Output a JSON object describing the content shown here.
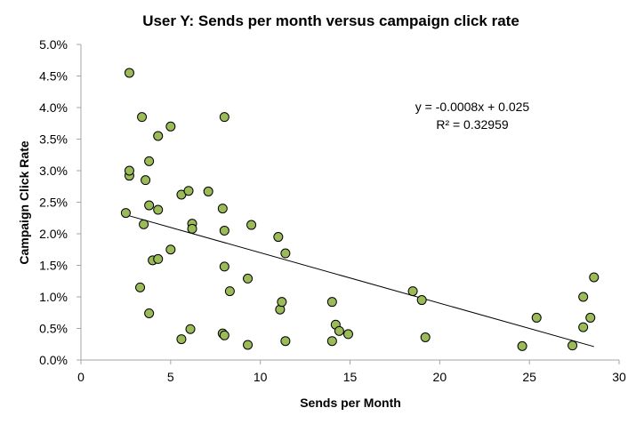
{
  "chart_data": {
    "type": "scatter",
    "title": "User Y: Sends per month versus campaign click rate",
    "xlabel": "Sends per Month",
    "ylabel": "Campaign Click Rate",
    "xlim": [
      0,
      30
    ],
    "ylim": [
      0,
      0.05
    ],
    "x_ticks": [
      "0",
      "5",
      "10",
      "15",
      "20",
      "25",
      "30"
    ],
    "y_ticks": [
      "0.0%",
      "0.5%",
      "1.0%",
      "1.5%",
      "2.0%",
      "2.5%",
      "3.0%",
      "3.5%",
      "4.0%",
      "4.5%",
      "5.0%"
    ],
    "grid": false,
    "legend": "none",
    "marker_color": "#9bbb59",
    "points": [
      [
        2.5,
        0.0233
      ],
      [
        2.7,
        0.0455
      ],
      [
        2.7,
        0.0292
      ],
      [
        2.7,
        0.03
      ],
      [
        3.3,
        0.0115
      ],
      [
        3.4,
        0.0385
      ],
      [
        3.5,
        0.0215
      ],
      [
        3.6,
        0.0285
      ],
      [
        3.8,
        0.0074
      ],
      [
        3.8,
        0.0315
      ],
      [
        3.8,
        0.0245
      ],
      [
        4.0,
        0.0158
      ],
      [
        4.3,
        0.016
      ],
      [
        4.3,
        0.0355
      ],
      [
        4.3,
        0.0238
      ],
      [
        5.0,
        0.037
      ],
      [
        5.0,
        0.0175
      ],
      [
        5.6,
        0.0033
      ],
      [
        5.6,
        0.0262
      ],
      [
        6.0,
        0.0268
      ],
      [
        6.1,
        0.0049
      ],
      [
        6.2,
        0.0216
      ],
      [
        6.2,
        0.0208
      ],
      [
        7.1,
        0.0267
      ],
      [
        7.9,
        0.0042
      ],
      [
        7.9,
        0.024
      ],
      [
        8.0,
        0.0039
      ],
      [
        8.0,
        0.0385
      ],
      [
        8.0,
        0.0205
      ],
      [
        8.0,
        0.0148
      ],
      [
        8.3,
        0.0109
      ],
      [
        9.3,
        0.0129
      ],
      [
        9.3,
        0.0024
      ],
      [
        9.5,
        0.0214
      ],
      [
        11.0,
        0.0195
      ],
      [
        11.1,
        0.008
      ],
      [
        11.2,
        0.0092
      ],
      [
        11.4,
        0.0169
      ],
      [
        11.4,
        0.003
      ],
      [
        14.0,
        0.0092
      ],
      [
        14.0,
        0.003
      ],
      [
        14.2,
        0.0056
      ],
      [
        14.4,
        0.0046
      ],
      [
        14.9,
        0.0041
      ],
      [
        18.5,
        0.0109
      ],
      [
        19.0,
        0.0095
      ],
      [
        19.2,
        0.0036
      ],
      [
        24.6,
        0.0022
      ],
      [
        25.4,
        0.0067
      ],
      [
        27.4,
        0.0023
      ],
      [
        28.0,
        0.01
      ],
      [
        28.0,
        0.0052
      ],
      [
        28.4,
        0.0067
      ],
      [
        28.6,
        0.0131
      ]
    ],
    "trendline": {
      "type": "linear",
      "slope": -0.0008,
      "intercept": 0.025,
      "equation": "y = -0.0008x + 0.025",
      "r_squared": "R² = 0.32959"
    }
  }
}
